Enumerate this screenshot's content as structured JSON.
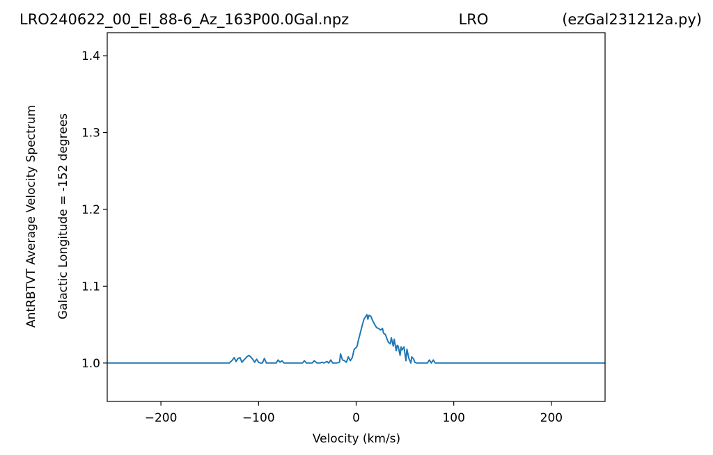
{
  "header": {
    "left": "LRO240622_00_El_88-6_Az_163P00.0Gal.npz",
    "center": "LRO",
    "right": "(ezGal231212a.py)"
  },
  "chart_data": {
    "type": "line",
    "xlabel": "Velocity (km/s)",
    "ylabel_line1": "AntRBTVT Average Velocity Spectrum",
    "ylabel_line2": "Galactic Longitude = -152 degrees",
    "xlim": [
      -255,
      255
    ],
    "ylim": [
      0.95,
      1.43
    ],
    "xticks": [
      -200,
      -100,
      0,
      100,
      200
    ],
    "xtick_labels": [
      "−200",
      "−100",
      "0",
      "100",
      "200"
    ],
    "yticks": [
      1.0,
      1.1,
      1.2,
      1.3,
      1.4
    ],
    "ytick_labels": [
      "1.0",
      "1.1",
      "1.2",
      "1.3",
      "1.4"
    ],
    "grid": false,
    "line_color": "#1f77b4",
    "series": [
      {
        "x": [
          -255,
          -130,
          -127,
          -125,
          -123,
          -121,
          -119,
          -117,
          -115,
          -112,
          -110,
          -108,
          -106,
          -104,
          -102,
          -100,
          -98,
          -96,
          -94,
          -92,
          -90,
          -88,
          -85,
          -82,
          -80,
          -78,
          -76,
          -74,
          -72,
          -70,
          -60,
          -55,
          -53,
          -51,
          -48,
          -45,
          -43,
          -40,
          -37,
          -35,
          -33,
          -30,
          -28,
          -26,
          -24,
          -20,
          -17,
          -16,
          -14,
          -12,
          -10,
          -8,
          -6,
          -4,
          -2,
          0,
          1,
          2,
          4,
          6,
          8,
          9,
          11,
          12,
          13,
          15,
          17,
          19,
          21,
          23,
          25,
          27,
          28,
          30,
          32,
          33,
          35,
          36,
          38,
          39,
          41,
          42,
          43,
          45,
          46,
          47,
          49,
          51,
          52,
          54,
          56,
          57,
          59,
          60,
          62,
          63,
          65,
          67,
          69,
          71,
          73,
          75,
          77,
          79,
          81,
          85,
          255
        ],
        "values": [
          1.0,
          1.0,
          1.0035,
          1.007,
          1.002,
          1.006,
          1.007,
          1.001,
          1.004,
          1.008,
          1.01,
          1.008,
          1.005,
          1.001,
          1.005,
          1.001,
          1.0,
          1.0,
          1.006,
          1.0,
          1.0,
          1.0,
          1.0,
          1.0,
          1.004,
          1.001,
          1.003,
          1.0,
          1.0,
          1.0,
          1.0,
          1.0,
          1.003,
          1.0,
          1.0,
          1.0,
          1.003,
          1.0,
          1.0,
          1.001,
          1.0,
          1.002,
          1.0,
          1.004,
          1.0,
          1.0,
          1.001,
          1.012,
          1.004,
          1.003,
          1.001,
          1.008,
          1.003,
          1.007,
          1.018,
          1.02,
          1.022,
          1.028,
          1.038,
          1.048,
          1.057,
          1.059,
          1.063,
          1.057,
          1.062,
          1.061,
          1.055,
          1.05,
          1.046,
          1.045,
          1.043,
          1.045,
          1.039,
          1.037,
          1.03,
          1.027,
          1.025,
          1.033,
          1.022,
          1.031,
          1.016,
          1.023,
          1.022,
          1.01,
          1.021,
          1.017,
          1.021,
          1.003,
          1.018,
          1.006,
          1.0,
          1.008,
          1.005,
          1.001,
          1.0,
          1.0,
          1.0,
          1.0,
          1.0,
          1.0,
          1.0,
          1.004,
          1.0,
          1.004,
          1.0,
          1.0,
          1.0
        ]
      }
    ]
  }
}
